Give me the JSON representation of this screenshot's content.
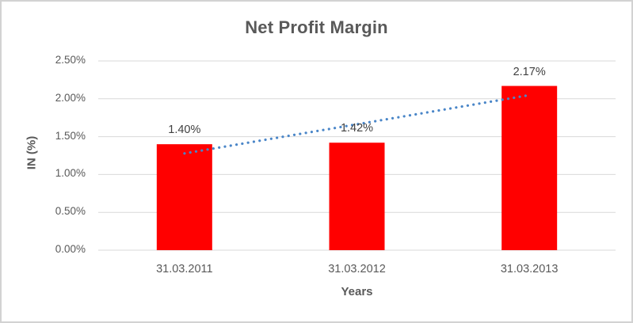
{
  "chart_data": {
    "type": "bar",
    "title": "Net Profit Margin",
    "xlabel": "Years",
    "ylabel": "IN (%)",
    "categories": [
      "31.03.2011",
      "31.03.2012",
      "31.03.2013"
    ],
    "values": [
      1.4,
      1.42,
      2.17
    ],
    "data_labels": [
      "1.40%",
      "1.42%",
      "2.17%"
    ],
    "ylim": [
      0,
      2.5
    ],
    "yticks": [
      {
        "value": 0.0,
        "label": "0.00%"
      },
      {
        "value": 0.5,
        "label": "0.50%"
      },
      {
        "value": 1.0,
        "label": "1.00%"
      },
      {
        "value": 1.5,
        "label": "1.50%"
      },
      {
        "value": 2.0,
        "label": "2.00%"
      },
      {
        "value": 2.5,
        "label": "2.50%"
      }
    ],
    "grid": "horizontal",
    "legend": "none",
    "trendline": {
      "type": "linear",
      "style": "dotted"
    },
    "colors": {
      "bar": "#FF0000",
      "trendline": "#4A86C8",
      "gridline": "#D9D9D9",
      "title_text": "#595959",
      "axis_text": "#595959",
      "data_label_text": "#404040"
    }
  }
}
